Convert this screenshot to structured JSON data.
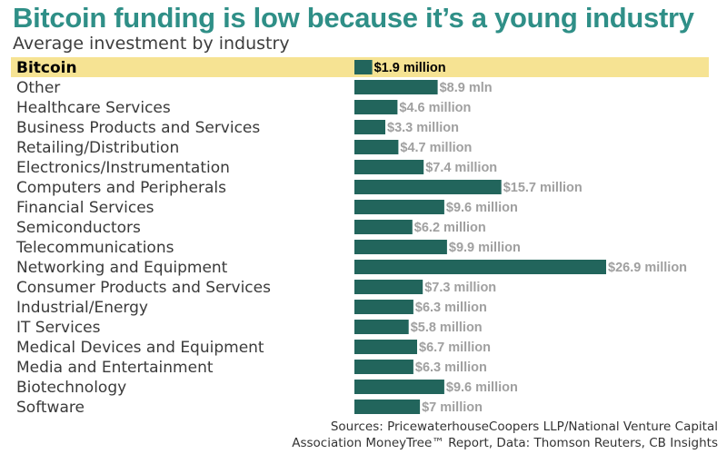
{
  "title": "Bitcoin funding is low because it’s a young industry",
  "subtitle": "Average investment by industry",
  "sources": {
    "line1": "Sources: PricewaterhouseCoopers LLP/National Venture Capital",
    "line2": "Association MoneyTree™ Report, Data:  Thomson Reuters, CB Insights"
  },
  "colors": {
    "title": "#2f8f87",
    "bar": "#22655c",
    "highlight": "#f6e393",
    "label_muted": "#a0a0a0",
    "label_highlight": "#000000"
  },
  "chart_data": {
    "type": "bar",
    "orientation": "horizontal",
    "title": "Bitcoin funding is low because it’s a young industry",
    "subtitle": "Average investment by industry",
    "units": "million USD",
    "xlim": [
      0,
      26.9
    ],
    "highlight_category": "Bitcoin",
    "categories": [
      "Bitcoin",
      "Other",
      "Healthcare Services",
      "Business Products and Services",
      "Retailing/Distribution",
      "Electronics/Instrumentation",
      "Computers and Peripherals",
      "Financial Services",
      "Semiconductors",
      "Telecommunications",
      "Networking and Equipment",
      "Consumer Products and Services",
      "Industrial/Energy",
      "IT Services",
      "Medical Devices and Equipment",
      "Media and Entertainment",
      "Biotechnology",
      "Software"
    ],
    "values": [
      1.9,
      8.9,
      4.6,
      3.3,
      4.7,
      7.4,
      15.7,
      9.6,
      6.2,
      9.9,
      26.9,
      7.3,
      6.3,
      5.8,
      6.7,
      6.3,
      9.6,
      7
    ],
    "value_labels": [
      "$1.9 million",
      "$8.9 mln",
      "$4.6 million",
      "$3.3 million",
      "$4.7 million",
      "$7.4 million",
      "$15.7 million",
      "$9.6 million",
      "$6.2 million",
      "$9.9 million",
      "$26.9 million",
      "$7.3 million",
      "$6.3 million",
      "$5.8 million",
      "$6.7 million",
      "$6.3 million",
      "$9.6 million",
      "$7 million"
    ]
  }
}
